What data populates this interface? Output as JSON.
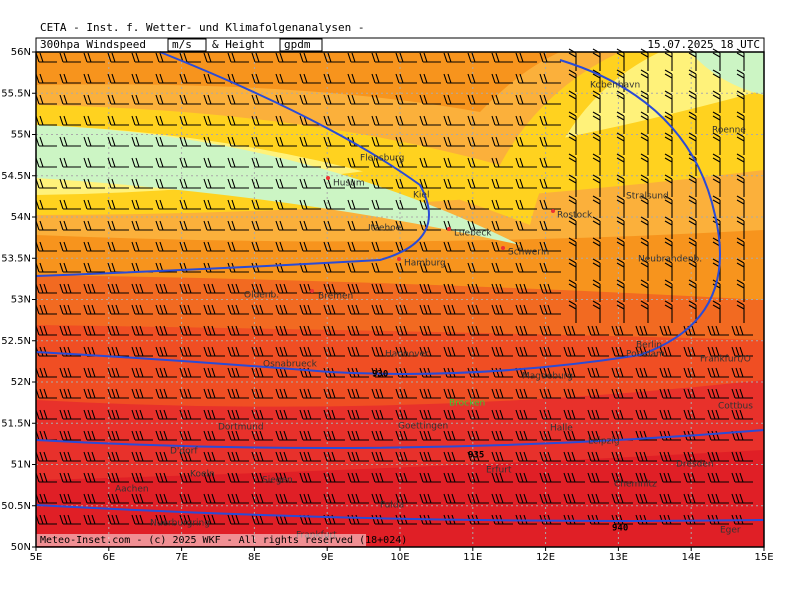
{
  "header": {
    "institute": "CETA - Inst. f. Wetter- und Klimafolgenanalysen -",
    "title_parts": [
      "300hpa Windspeed",
      "m/s",
      "& Height",
      "gpdm"
    ],
    "valid_time": "15.07.2025 18 UTC"
  },
  "axes": {
    "lat_ticks": [
      {
        "value": 56,
        "label": "56N"
      },
      {
        "value": 55.5,
        "label": "55.5N"
      },
      {
        "value": 55,
        "label": "55N"
      },
      {
        "value": 54.5,
        "label": "54.5N"
      },
      {
        "value": 54,
        "label": "54N"
      },
      {
        "value": 53.5,
        "label": "53.5N"
      },
      {
        "value": 53,
        "label": "53N"
      },
      {
        "value": 52.5,
        "label": "52.5N"
      },
      {
        "value": 52,
        "label": "52N"
      },
      {
        "value": 51.5,
        "label": "51.5N"
      },
      {
        "value": 51,
        "label": "51N"
      },
      {
        "value": 50.5,
        "label": "50.5N"
      },
      {
        "value": 50,
        "label": "50N"
      }
    ],
    "lon_ticks": [
      {
        "value": 5,
        "label": "5E"
      },
      {
        "value": 6,
        "label": "6E"
      },
      {
        "value": 7,
        "label": "7E"
      },
      {
        "value": 8,
        "label": "8E"
      },
      {
        "value": 9,
        "label": "9E"
      },
      {
        "value": 10,
        "label": "10E"
      },
      {
        "value": 11,
        "label": "11E"
      },
      {
        "value": 12,
        "label": "12E"
      },
      {
        "value": 13,
        "label": "13E"
      },
      {
        "value": 14,
        "label": "14E"
      },
      {
        "value": 15,
        "label": "15E"
      }
    ]
  },
  "cities": [
    "Kobenhavn",
    "Flensburg",
    "Husum",
    "Kiel",
    "Roenne",
    "Stralsund",
    "Rostock",
    "Itzehoe",
    "Luebeck",
    "Schwerin",
    "Neubrandenb.",
    "Hamburg",
    "Oldenb.",
    "Bremen",
    "Berlin",
    "Potsdam",
    "Frankfurt/O",
    "Hannover",
    "Osnabrueck",
    "Magdeburg",
    "Cottbus",
    "Brocken",
    "Dortmund",
    "Goettingen",
    "Halle",
    "Leipzig",
    "D'dorf",
    "Koeln",
    "Siegen",
    "Dresden",
    "Chemnitz",
    "Erfurt",
    "Aachen",
    "Fulda",
    "Nuerburgring",
    "Frankfurt",
    "Eger"
  ],
  "contour_labels": [
    "930",
    "935",
    "940"
  ],
  "copyright": "Meteo-Inset.com - (c) 2025 WKF - All rights reserved (18+024)"
}
